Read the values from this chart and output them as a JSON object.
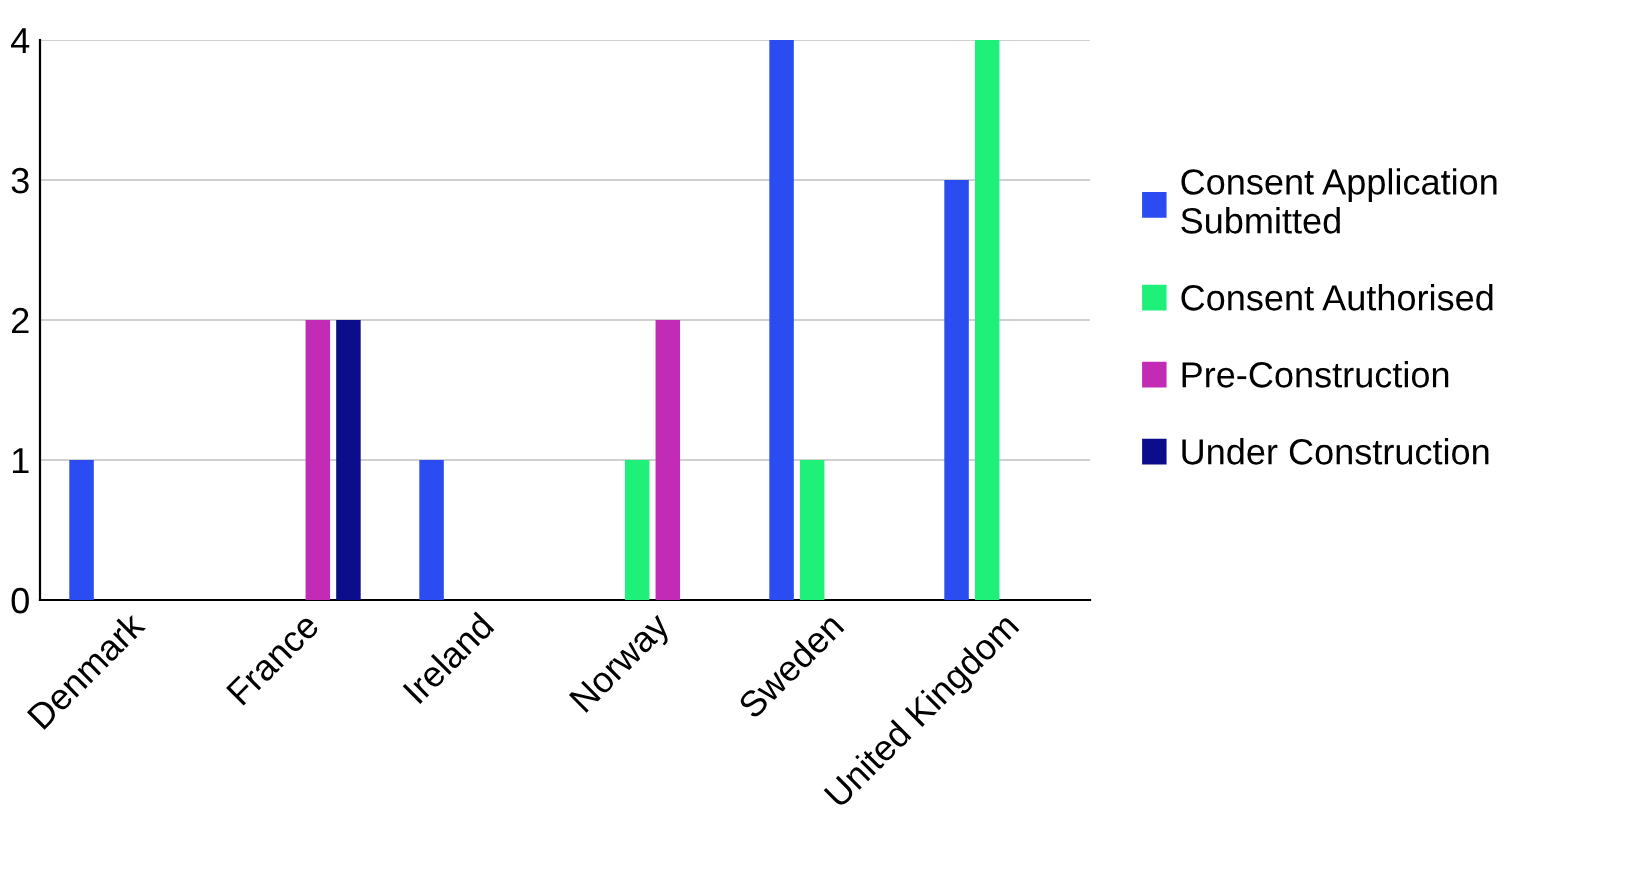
{
  "chart_data": {
    "type": "bar",
    "categories": [
      "Denmark",
      "France",
      "Ireland",
      "Norway",
      "Sweden",
      "United Kingdom"
    ],
    "series": [
      {
        "name": "Consent Application\nSubmitted",
        "color": "#2a4cf0",
        "values": [
          1,
          0,
          1,
          0,
          4,
          3
        ]
      },
      {
        "name": "Consent Authorised",
        "color": "#1ef07a",
        "values": [
          0,
          0,
          0,
          1,
          1,
          4
        ]
      },
      {
        "name": "Pre-Construction",
        "color": "#c22bb5",
        "values": [
          0,
          2,
          0,
          2,
          0,
          0
        ]
      },
      {
        "name": "Under Construction",
        "color": "#0c0d8a",
        "values": [
          0,
          2,
          0,
          0,
          0,
          0
        ]
      }
    ],
    "ylim": [
      0,
      4
    ],
    "yticks": [
      0,
      1,
      2,
      3,
      4
    ],
    "grid": "y",
    "legend": "right"
  }
}
